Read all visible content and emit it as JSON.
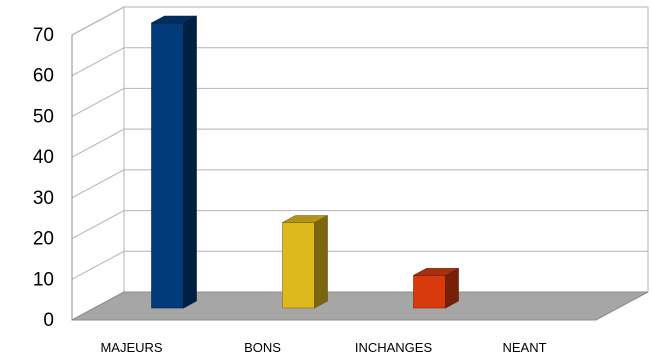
{
  "chart_data": {
    "type": "bar",
    "title": "",
    "xlabel": "",
    "ylabel": "",
    "categories": [
      "MAJEURS",
      "BONS",
      "INCHANGES",
      "NEANT"
    ],
    "values": [
      70,
      21,
      8,
      0
    ],
    "ylim": [
      0,
      70
    ],
    "yticks": [
      "0",
      "10",
      "20",
      "30",
      "40",
      "50",
      "60",
      "70"
    ],
    "grid": true,
    "legend": "none",
    "style": "3d",
    "colors": [
      "#003A78",
      "#DDB91E",
      "#D8390D",
      "#7F7F7F"
    ],
    "floor_color": "#A6A6A6"
  }
}
